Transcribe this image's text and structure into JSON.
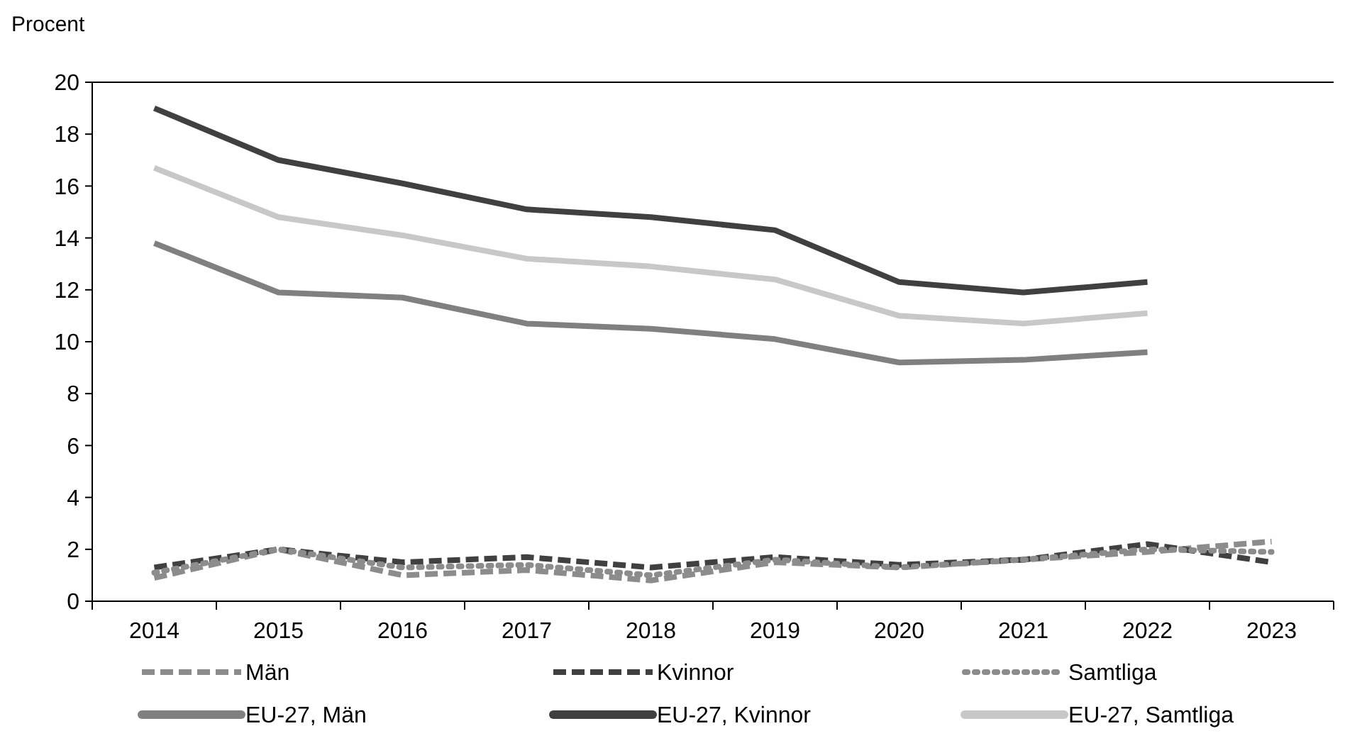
{
  "chart_data": {
    "type": "line",
    "ylabel": "Procent",
    "categories": [
      "2014",
      "2015",
      "2016",
      "2017",
      "2018",
      "2019",
      "2020",
      "2021",
      "2022",
      "2023"
    ],
    "ylim": [
      0,
      20
    ],
    "yticks": [
      0,
      2,
      4,
      6,
      8,
      10,
      12,
      14,
      16,
      18,
      20
    ],
    "grid": false,
    "legend": "bottom",
    "series": [
      {
        "name": "Män",
        "color": "#8c8c8c",
        "line_style": "dashed",
        "values": [
          0.9,
          2.0,
          1.0,
          1.2,
          0.8,
          1.5,
          1.3,
          1.6,
          1.9,
          2.3
        ]
      },
      {
        "name": "Kvinnor",
        "color": "#404040",
        "line_style": "dashed",
        "values": [
          1.3,
          2.0,
          1.5,
          1.7,
          1.3,
          1.7,
          1.4,
          1.6,
          2.2,
          1.5
        ]
      },
      {
        "name": "Samtliga",
        "color": "#8c8c8c",
        "line_style": "dotted",
        "values": [
          1.1,
          2.0,
          1.3,
          1.4,
          1.0,
          1.6,
          1.3,
          1.6,
          2.0,
          1.9
        ]
      },
      {
        "name": "EU-27, Män",
        "color": "#808080",
        "line_style": "solid",
        "values": [
          13.8,
          11.9,
          11.7,
          10.7,
          10.5,
          10.1,
          9.2,
          9.3,
          9.6,
          null
        ]
      },
      {
        "name": "EU-27, Kvinnor",
        "color": "#404040",
        "line_style": "solid",
        "values": [
          19.0,
          17.0,
          16.1,
          15.1,
          14.8,
          14.3,
          12.3,
          11.9,
          12.3,
          null
        ]
      },
      {
        "name": "EU-27, Samtliga",
        "color": "#c8c8c8",
        "line_style": "solid",
        "values": [
          16.7,
          14.8,
          14.1,
          13.2,
          12.9,
          12.4,
          11.0,
          10.7,
          11.1,
          null
        ]
      }
    ]
  }
}
